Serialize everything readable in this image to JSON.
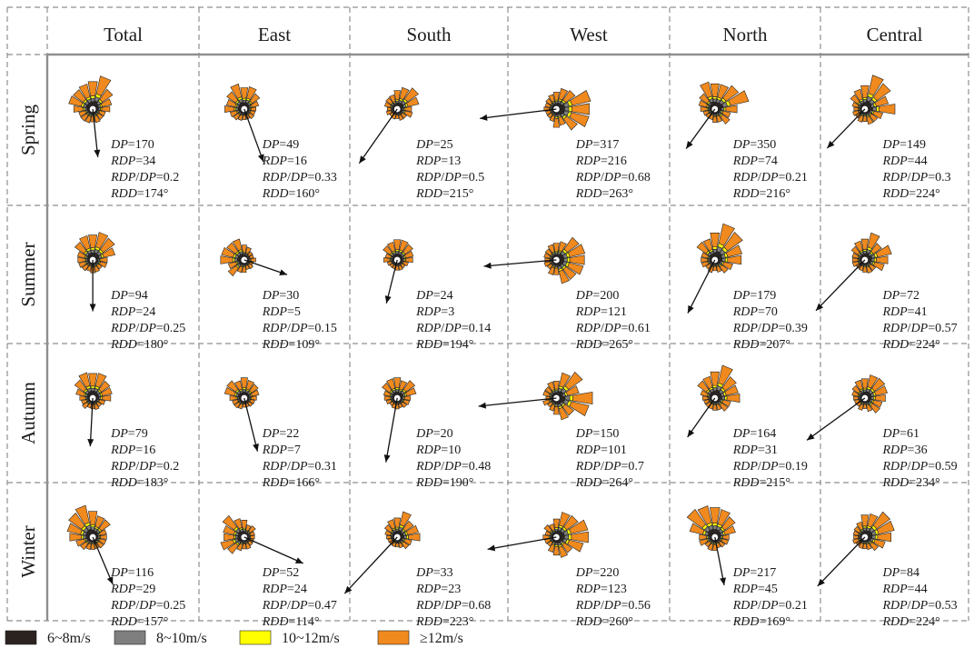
{
  "columns": [
    "Total",
    "East",
    "South",
    "West",
    "North",
    "Central"
  ],
  "rows": [
    "Spring",
    "Summer",
    "Autumn",
    "Winter"
  ],
  "stat_labels": {
    "dp": "DP",
    "rdp": "RDP",
    "ratio_a": "RDP",
    "ratio_b": "DP",
    "rdd": "RDD"
  },
  "legend": [
    {
      "label": "6~8m/s",
      "color": "#2b2320"
    },
    {
      "label": "8~10m/s",
      "color": "#7f7f7f"
    },
    {
      "label": "10~12m/s",
      "color": "#ffff00"
    },
    {
      "label": "≥12m/s",
      "color": "#f08a1e"
    }
  ],
  "stats": [
    [
      {
        "dp": "170",
        "rdp": "34",
        "ratio": "0.2",
        "rdd": "174",
        "rdd_value": 174
      },
      {
        "dp": "49",
        "rdp": "16",
        "ratio": "0.33",
        "rdd": "160",
        "rdd_value": 160
      },
      {
        "dp": "25",
        "rdp": "13",
        "ratio": "0.5",
        "rdd": "215",
        "rdd_value": 215
      },
      {
        "dp": "317",
        "rdp": "216",
        "ratio": "0.68",
        "rdd": "263",
        "rdd_value": 263
      },
      {
        "dp": "350",
        "rdp": "74",
        "ratio": "0.21",
        "rdd": "216",
        "rdd_value": 216
      },
      {
        "dp": "149",
        "rdp": "44",
        "ratio": "0.3",
        "rdd": "224",
        "rdd_value": 224
      }
    ],
    [
      {
        "dp": "94",
        "rdp": "24",
        "ratio": "0.25",
        "rdd": "180",
        "rdd_value": 180
      },
      {
        "dp": "30",
        "rdp": "5",
        "ratio": "0.15",
        "rdd": "109",
        "rdd_value": 109
      },
      {
        "dp": "24",
        "rdp": "3",
        "ratio": "0.14",
        "rdd": "194",
        "rdd_value": 194
      },
      {
        "dp": "200",
        "rdp": "121",
        "ratio": "0.61",
        "rdd": "265",
        "rdd_value": 265
      },
      {
        "dp": "179",
        "rdp": "70",
        "ratio": "0.39",
        "rdd": "207",
        "rdd_value": 207
      },
      {
        "dp": "72",
        "rdp": "41",
        "ratio": "0.57",
        "rdd": "224",
        "rdd_value": 224
      }
    ],
    [
      {
        "dp": "79",
        "rdp": "16",
        "ratio": "0.2",
        "rdd": "183",
        "rdd_value": 183
      },
      {
        "dp": "22",
        "rdp": "7",
        "ratio": "0.31",
        "rdd": "166",
        "rdd_value": 166
      },
      {
        "dp": "20",
        "rdp": "10",
        "ratio": "0.48",
        "rdd": "190",
        "rdd_value": 190
      },
      {
        "dp": "150",
        "rdp": "101",
        "ratio": "0.7",
        "rdd": "264",
        "rdd_value": 264
      },
      {
        "dp": "164",
        "rdp": "31",
        "ratio": "0.19",
        "rdd": "215",
        "rdd_value": 215
      },
      {
        "dp": "61",
        "rdp": "36",
        "ratio": "0.59",
        "rdd": "234",
        "rdd_value": 234
      }
    ],
    [
      {
        "dp": "116",
        "rdp": "29",
        "ratio": "0.25",
        "rdd": "157",
        "rdd_value": 157
      },
      {
        "dp": "52",
        "rdp": "24",
        "ratio": "0.47",
        "rdd": "114",
        "rdd_value": 114
      },
      {
        "dp": "33",
        "rdp": "23",
        "ratio": "0.68",
        "rdd": "223",
        "rdd_value": 223
      },
      {
        "dp": "220",
        "rdp": "123",
        "ratio": "0.56",
        "rdd": "260",
        "rdd_value": 260
      },
      {
        "dp": "217",
        "rdp": "45",
        "ratio": "0.21",
        "rdd": "169",
        "rdd_value": 169
      },
      {
        "dp": "84",
        "rdp": "44",
        "ratio": "0.53",
        "rdd": "224",
        "rdd_value": 224
      }
    ]
  ]
}
